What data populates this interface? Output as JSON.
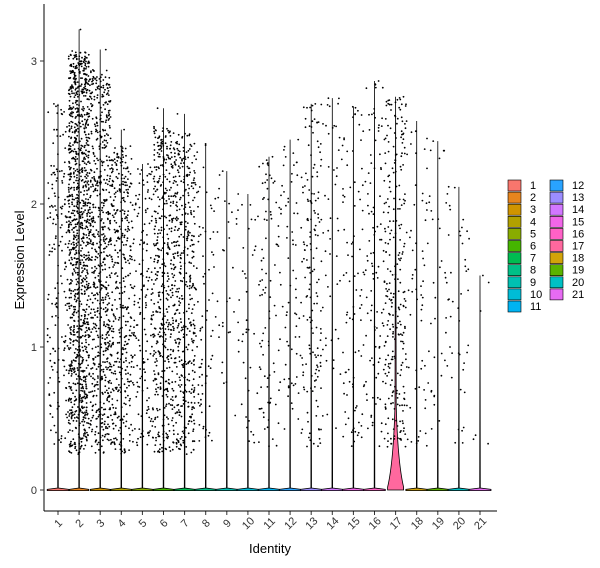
{
  "chart_data": {
    "type": "violin",
    "xlabel": "Identity",
    "ylabel": "Expression Level",
    "ylim": [
      0,
      3.15
    ],
    "yticks": [
      0,
      1,
      2,
      3
    ],
    "grid": false,
    "legend_position": "right",
    "categories": [
      "1",
      "2",
      "3",
      "4",
      "5",
      "6",
      "7",
      "8",
      "9",
      "10",
      "11",
      "12",
      "13",
      "14",
      "15",
      "16",
      "17",
      "18",
      "19",
      "20",
      "21"
    ],
    "colors": [
      "#F8766D",
      "#E7851E",
      "#D09400",
      "#B2A100",
      "#89AC00",
      "#45B500",
      "#00BC51",
      "#00C087",
      "#00C0B2",
      "#00BCD6",
      "#00B3F2",
      "#29A3FF",
      "#9C8DFF",
      "#D277FF",
      "#F166E8",
      "#FF61C7",
      "#FF689E",
      "#D2A30A",
      "#5BB300",
      "#00BFC4",
      "#E76BF3"
    ],
    "max_values": [
      2.7,
      3.22,
      3.08,
      2.52,
      2.28,
      2.67,
      2.63,
      2.42,
      2.23,
      2.07,
      2.33,
      2.45,
      2.7,
      2.74,
      2.68,
      2.86,
      2.75,
      2.58,
      2.44,
      2.12,
      1.5
    ],
    "nonzero_fraction": [
      0.05,
      0.3,
      0.25,
      0.12,
      0.08,
      0.18,
      0.14,
      0.04,
      0.02,
      0.02,
      0.04,
      0.04,
      0.08,
      0.03,
      0.05,
      0.05,
      0.35,
      0.04,
      0.03,
      0.03,
      0.01
    ],
    "n_points": [
      180,
      1100,
      650,
      400,
      170,
      450,
      420,
      80,
      30,
      40,
      90,
      70,
      160,
      50,
      90,
      110,
      260,
      60,
      40,
      40,
      6
    ]
  }
}
